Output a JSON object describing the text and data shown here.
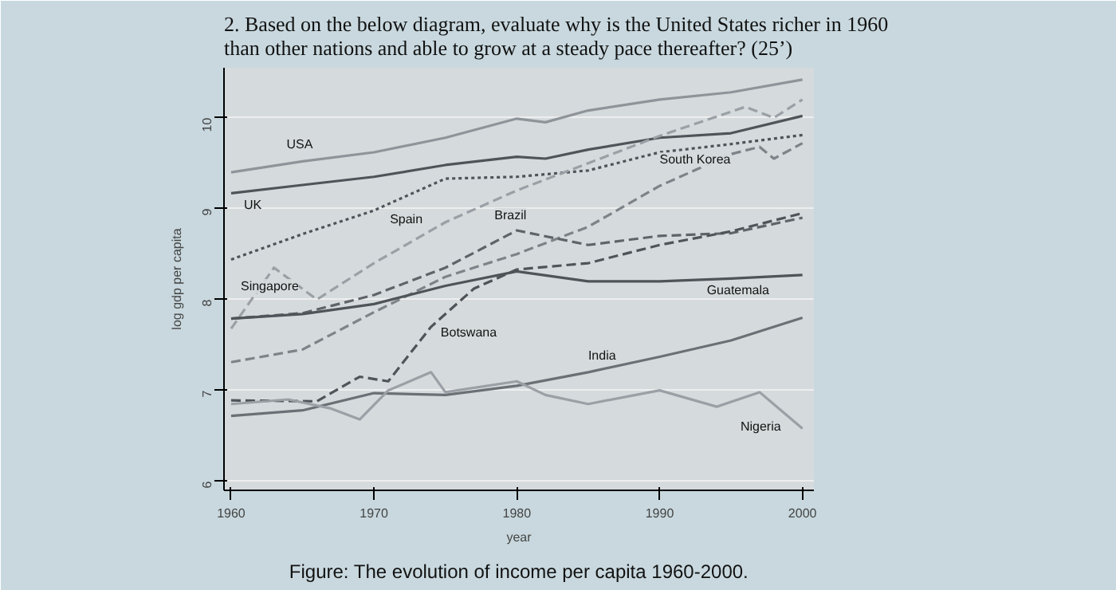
{
  "chart_data": {
    "type": "line",
    "title": "2.  Based on the below diagram, evaluate why is the United States richer in 1960\n     than other nations and able to grow at a steady pace thereafter? (25’)",
    "xlabel": "year",
    "ylabel": "log gdp per capita",
    "annotations": [
      "Figure: The evolution of income per capita 1960-2000."
    ],
    "xlim": [
      1959.5,
      2000.8
    ],
    "xticks": [
      1960,
      1970,
      1980,
      1990,
      2000
    ],
    "ylim": [
      5.9,
      10.55
    ],
    "yticks": [
      6,
      7,
      8,
      9,
      10
    ],
    "grid": "y",
    "marker": "none",
    "series": [
      {
        "name": "USA",
        "color": "#8e9499",
        "line_style": "solid",
        "x": [
          1960,
          1965,
          1970,
          1975,
          1980,
          1982,
          1985,
          1990,
          1995,
          2000
        ],
        "values": [
          9.4,
          9.52,
          9.62,
          9.78,
          9.99,
          9.95,
          10.08,
          10.2,
          10.28,
          10.42
        ]
      },
      {
        "name": "UK",
        "color": "#4f5459",
        "line_style": "solid",
        "x": [
          1960,
          1965,
          1970,
          1975,
          1980,
          1982,
          1985,
          1990,
          1995,
          2000
        ],
        "values": [
          9.17,
          9.26,
          9.35,
          9.48,
          9.57,
          9.55,
          9.65,
          9.78,
          9.83,
          10.02
        ]
      },
      {
        "name": "Spain",
        "color": "#4f5459",
        "line_style": "dotted",
        "x": [
          1960,
          1965,
          1970,
          1975,
          1980,
          1985,
          1990,
          1995,
          2000
        ],
        "values": [
          8.44,
          8.72,
          8.98,
          9.33,
          9.35,
          9.42,
          9.62,
          9.71,
          9.81
        ]
      },
      {
        "name": "Singapore",
        "color": "#9aa0a5",
        "line_style": "dashed",
        "x": [
          1960,
          1963,
          1966,
          1970,
          1975,
          1980,
          1985,
          1990,
          1996,
          1998,
          2000
        ],
        "values": [
          7.68,
          8.35,
          8.0,
          8.4,
          8.85,
          9.2,
          9.5,
          9.8,
          10.12,
          10.0,
          10.2
        ]
      },
      {
        "name": "South Korea",
        "color": "#7d8388",
        "line_style": "dashed",
        "x": [
          1960,
          1965,
          1970,
          1975,
          1980,
          1985,
          1990,
          1995,
          1997,
          1998,
          2000
        ],
        "values": [
          7.31,
          7.45,
          7.86,
          8.25,
          8.5,
          8.8,
          9.25,
          9.6,
          9.68,
          9.55,
          9.72
        ]
      },
      {
        "name": "Brazil",
        "color": "#5f6469",
        "line_style": "dashed",
        "x": [
          1960,
          1965,
          1970,
          1975,
          1980,
          1985,
          1990,
          1995,
          2000
        ],
        "values": [
          7.79,
          7.85,
          8.05,
          8.35,
          8.76,
          8.6,
          8.7,
          8.73,
          8.9
        ]
      },
      {
        "name": "Guatemala",
        "color": "#4f5459",
        "line_style": "solid",
        "x": [
          1960,
          1965,
          1970,
          1975,
          1980,
          1985,
          1990,
          1995,
          2000
        ],
        "values": [
          7.79,
          7.84,
          7.95,
          8.15,
          8.31,
          8.2,
          8.2,
          8.23,
          8.27
        ]
      },
      {
        "name": "Botswana",
        "color": "#4f5459",
        "line_style": "dashed",
        "x": [
          1960,
          1966,
          1969,
          1971,
          1974,
          1977,
          1980,
          1985,
          1990,
          1995,
          2000
        ],
        "values": [
          6.89,
          6.88,
          7.15,
          7.1,
          7.7,
          8.12,
          8.33,
          8.4,
          8.6,
          8.75,
          8.95
        ]
      },
      {
        "name": "India",
        "color": "#6a7075",
        "line_style": "solid",
        "x": [
          1960,
          1965,
          1970,
          1975,
          1980,
          1985,
          1990,
          1995,
          2000
        ],
        "values": [
          6.72,
          6.78,
          6.97,
          6.95,
          7.05,
          7.2,
          7.37,
          7.55,
          7.8
        ]
      },
      {
        "name": "Nigeria",
        "color": "#9aa0a5",
        "line_style": "solid",
        "x": [
          1960,
          1964,
          1967,
          1969,
          1971,
          1974,
          1975,
          1980,
          1982,
          1985,
          1990,
          1994,
          1997,
          2000
        ],
        "values": [
          6.85,
          6.9,
          6.8,
          6.68,
          7.0,
          7.2,
          6.98,
          7.1,
          6.95,
          6.85,
          7.0,
          6.82,
          6.98,
          6.58
        ]
      }
    ]
  }
}
